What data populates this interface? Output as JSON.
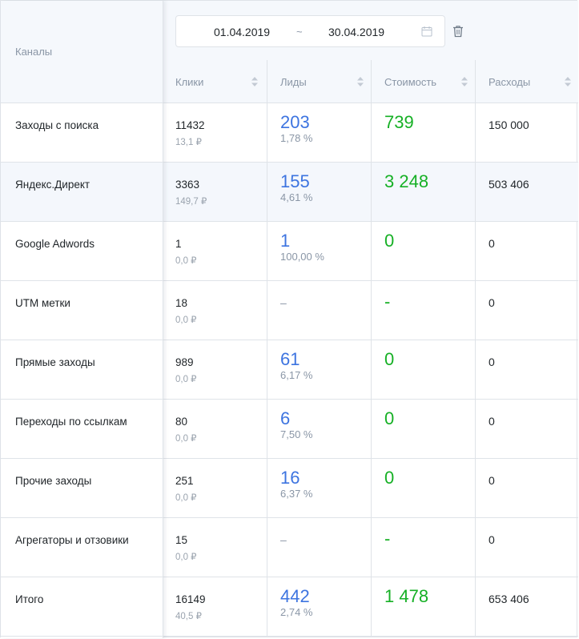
{
  "header": {
    "channels_label": "Каналы",
    "date_from": "01.04.2019",
    "date_separator": "~",
    "date_to": "30.04.2019",
    "columns": [
      "Клики",
      "Лиды",
      "Стоимость",
      "Расходы"
    ]
  },
  "rows": [
    {
      "channel": "Заходы с поиска",
      "clicks": "11432",
      "clicks_cost": "13,1 ₽",
      "leads": "203",
      "leads_pct": "1,78 %",
      "cost": "739",
      "spend": "150 000"
    },
    {
      "channel": "Яндекс.Директ",
      "clicks": "3363",
      "clicks_cost": "149,7 ₽",
      "leads": "155",
      "leads_pct": "4,61 %",
      "cost": "3 248",
      "spend": "503 406"
    },
    {
      "channel": "Google Adwords",
      "clicks": "1",
      "clicks_cost": "0,0 ₽",
      "leads": "1",
      "leads_pct": "100,00 %",
      "cost": "0",
      "spend": "0"
    },
    {
      "channel": "UTM метки",
      "clicks": "18",
      "clicks_cost": "0,0 ₽",
      "leads": "–",
      "leads_pct": "",
      "cost": "-",
      "spend": "0"
    },
    {
      "channel": "Прямые заходы",
      "clicks": "989",
      "clicks_cost": "0,0 ₽",
      "leads": "61",
      "leads_pct": "6,17 %",
      "cost": "0",
      "spend": "0"
    },
    {
      "channel": "Переходы по ссылкам",
      "clicks": "80",
      "clicks_cost": "0,0 ₽",
      "leads": "6",
      "leads_pct": "7,50 %",
      "cost": "0",
      "spend": "0"
    },
    {
      "channel": "Прочие заходы",
      "clicks": "251",
      "clicks_cost": "0,0 ₽",
      "leads": "16",
      "leads_pct": "6,37 %",
      "cost": "0",
      "spend": "0"
    },
    {
      "channel": "Агрегаторы и отзовики",
      "clicks": "15",
      "clicks_cost": "0,0 ₽",
      "leads": "–",
      "leads_pct": "",
      "cost": "-",
      "spend": "0"
    },
    {
      "channel": "Итого",
      "clicks": "16149",
      "clicks_cost": "40,5 ₽",
      "leads": "442",
      "leads_pct": "2,74 %",
      "cost": "1 478",
      "spend": "653 406"
    }
  ],
  "colors": {
    "leads": "#3d74e0",
    "cost": "#16b025",
    "header_bg": "#f5f8fc",
    "alt_row": "#f4f7fc"
  },
  "icons": {
    "date": "calendar-icon",
    "clear": "trash-icon",
    "sort": "sort-icon"
  }
}
